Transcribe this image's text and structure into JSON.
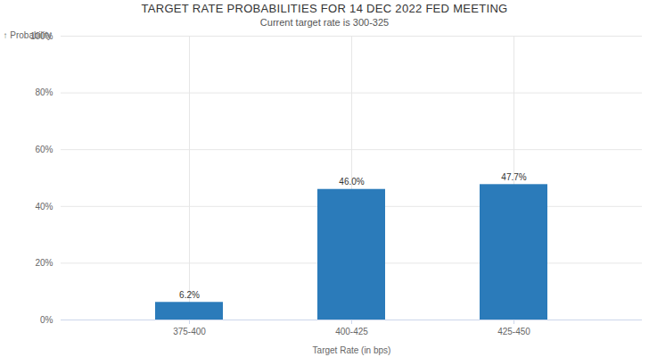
{
  "chart_data": {
    "type": "bar",
    "title": "TARGET RATE PROBABILITIES FOR 14 DEC 2022 FED MEETING",
    "subtitle": "Current target rate is 300-325",
    "x_label": "Target Rate (in bps)",
    "y_label": "Probability",
    "categories": [
      "375-400",
      "400-425",
      "425-450"
    ],
    "values": [
      6.2,
      46.0,
      47.7
    ],
    "value_labels": [
      "6.2%",
      "46.0%",
      "47.7%"
    ],
    "data_labels": true,
    "color": "#2b7bba",
    "ylim": [
      0,
      100
    ],
    "yticks": [
      {
        "value": 0,
        "label": "0%"
      },
      {
        "value": 20,
        "label": "20%"
      },
      {
        "value": 40,
        "label": "40%"
      },
      {
        "value": 60,
        "label": "60%"
      },
      {
        "value": 80,
        "label": "80%"
      },
      {
        "value": 100,
        "label": "100%"
      }
    ],
    "grid": true
  }
}
